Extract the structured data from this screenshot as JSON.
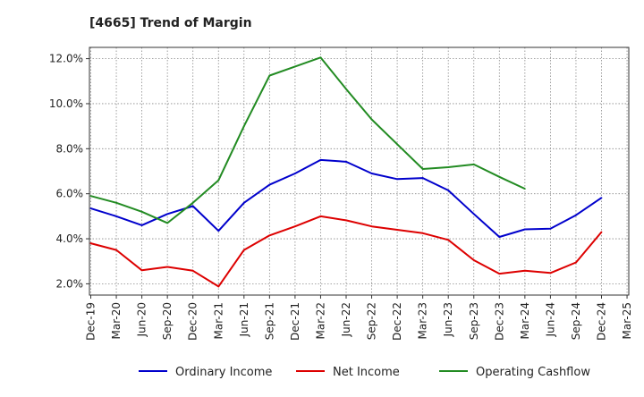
{
  "chart_data": {
    "type": "line",
    "title": "[4665]  Trend of Margin",
    "xlabel": "",
    "ylabel": "",
    "categories": [
      "Dec-19",
      "Mar-20",
      "Jun-20",
      "Sep-20",
      "Dec-20",
      "Mar-21",
      "Jun-21",
      "Sep-21",
      "Dec-21",
      "Mar-22",
      "Jun-22",
      "Sep-22",
      "Dec-22",
      "Mar-23",
      "Jun-23",
      "Sep-23",
      "Dec-23",
      "Mar-24",
      "Jun-24",
      "Sep-24",
      "Dec-24",
      "Mar-25"
    ],
    "ylim": [
      1.5,
      12.5
    ],
    "yticks": [
      2.0,
      4.0,
      6.0,
      8.0,
      10.0,
      12.0
    ],
    "ytick_labels": [
      "2.0%",
      "4.0%",
      "6.0%",
      "8.0%",
      "10.0%",
      "12.0%"
    ],
    "grid": true,
    "legend_position": "bottom",
    "series": [
      {
        "name": "Ordinary Income",
        "color": "#0000cc",
        "values": [
          5.35,
          5.0,
          4.6,
          5.1,
          5.45,
          4.35,
          5.6,
          6.4,
          6.9,
          7.5,
          7.42,
          6.9,
          6.65,
          6.7,
          6.15,
          5.1,
          4.08,
          4.42,
          4.45,
          5.05,
          5.82,
          null
        ]
      },
      {
        "name": "Net Income",
        "color": "#dd0000",
        "values": [
          3.8,
          3.5,
          2.6,
          2.75,
          2.58,
          1.88,
          3.5,
          4.15,
          4.55,
          5.0,
          4.82,
          4.55,
          4.4,
          4.25,
          3.95,
          3.05,
          2.45,
          2.58,
          2.48,
          2.95,
          4.3,
          null
        ]
      },
      {
        "name": "Operating Cashflow",
        "color": "#228b22",
        "values": [
          5.9,
          5.6,
          5.2,
          4.7,
          5.6,
          6.6,
          9.0,
          11.25,
          11.65,
          12.05,
          10.65,
          9.3,
          8.2,
          7.1,
          7.18,
          7.3,
          6.75,
          6.22,
          null,
          null,
          null,
          null
        ]
      }
    ]
  }
}
